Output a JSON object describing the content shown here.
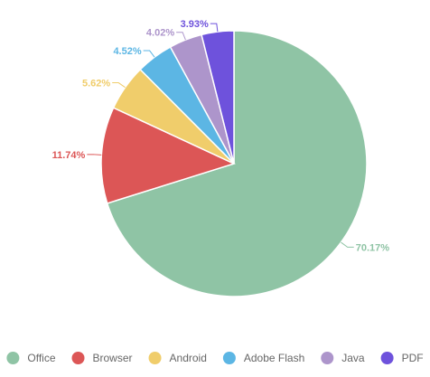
{
  "chart_data": {
    "type": "pie",
    "categories": [
      "Office",
      "Browser",
      "Android",
      "Adobe Flash",
      "Java",
      "PDF"
    ],
    "values": [
      70.17,
      11.74,
      5.62,
      4.52,
      4.02,
      3.93
    ],
    "value_labels": [
      "70.17%",
      "11.74%",
      "5.62%",
      "4.52%",
      "4.02%",
      "3.93%"
    ],
    "colors": [
      "#8fc4a5",
      "#dc5656",
      "#f0cd6b",
      "#5cb6e4",
      "#ad95cb",
      "#6e52dc"
    ],
    "title": "",
    "legend": "bottom",
    "start": "12 o'clock",
    "direction": "clockwise"
  }
}
